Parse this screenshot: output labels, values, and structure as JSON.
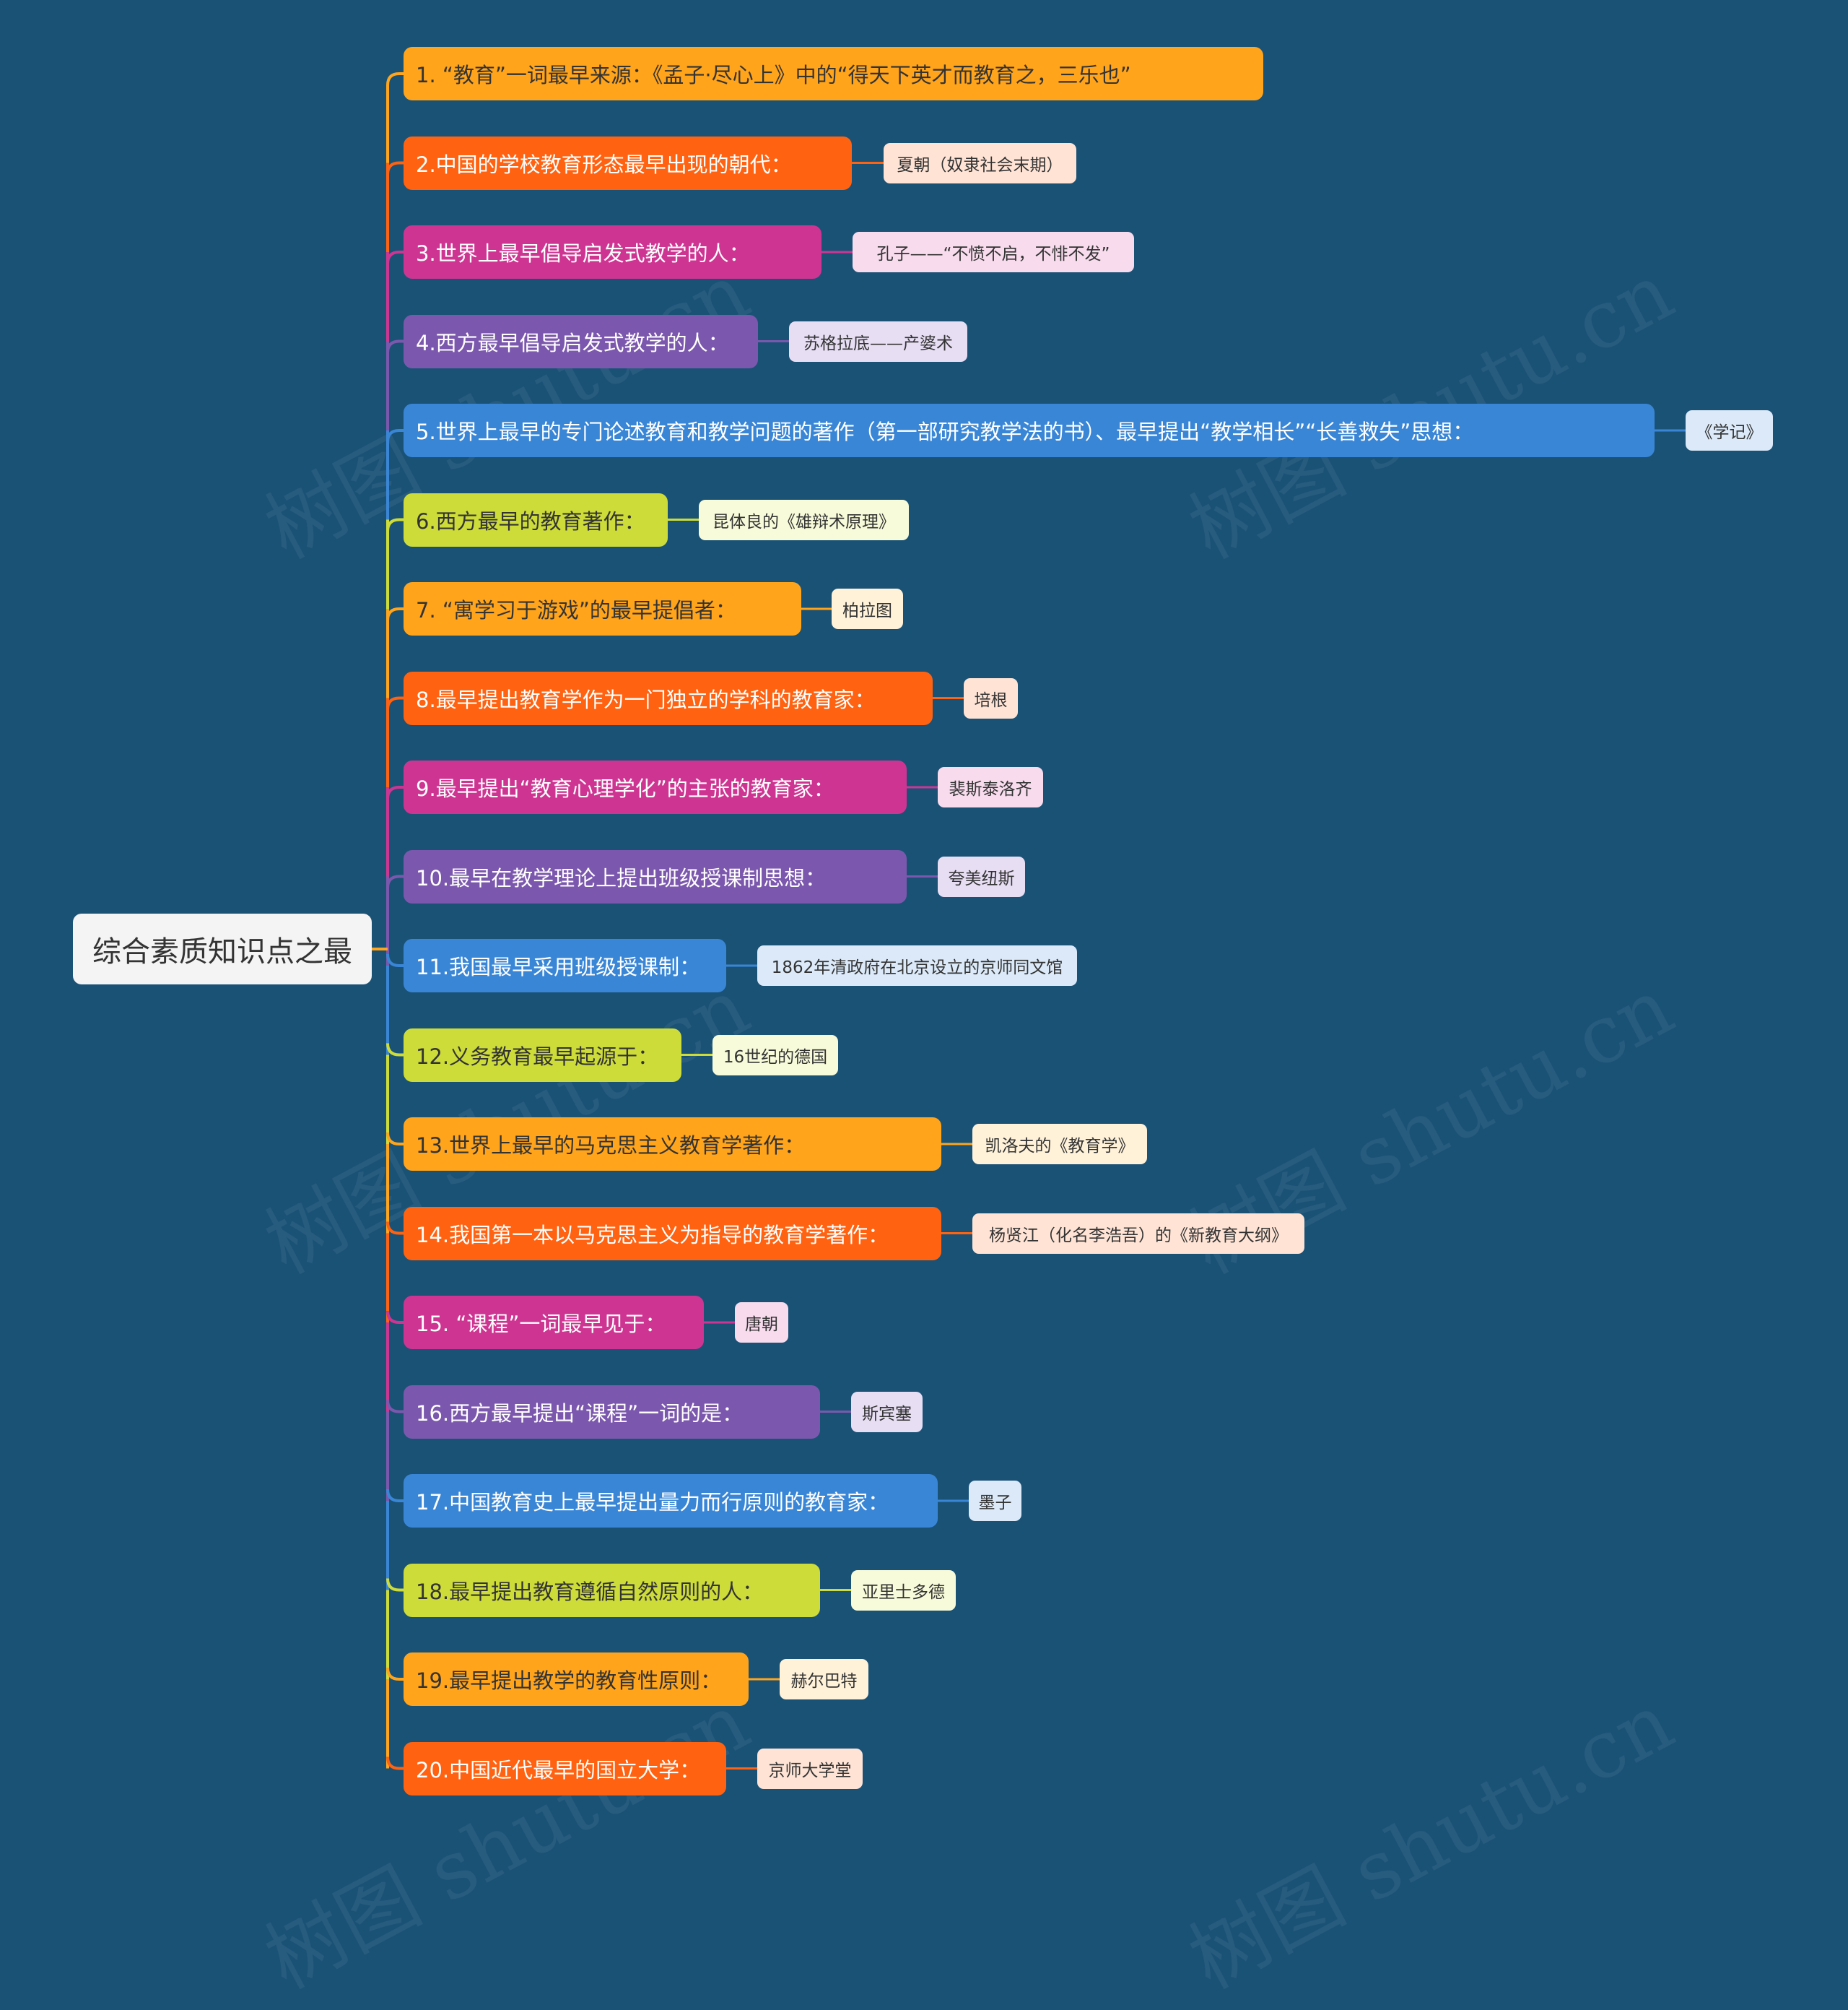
{
  "colors": {
    "background": "#1a5276",
    "root_bg": "#f4f4f4",
    "palette": [
      {
        "branch": "#ffa41b",
        "leaf": "#fff2d9",
        "text": "#333333"
      },
      {
        "branch": "#ff6210",
        "leaf": "#ffe4d6",
        "text": "#ffffff"
      },
      {
        "branch": "#ce3592",
        "leaf": "#f8dcee",
        "text": "#ffffff"
      },
      {
        "branch": "#7b58ad",
        "leaf": "#e7def4",
        "text": "#ffffff"
      },
      {
        "branch": "#3a86d6",
        "leaf": "#dbe9f8",
        "text": "#ffffff"
      },
      {
        "branch": "#cddc39",
        "leaf": "#f8fbd9",
        "text": "#333333"
      }
    ]
  },
  "watermark": "树图 shutu.cn",
  "root": {
    "label": "综合素质知识点之最"
  },
  "branches": [
    {
      "label": "1. “教育”一词最早来源：《孟子·尽心上》中的“得天下英才而教育之，三乐也”",
      "leaf": ""
    },
    {
      "label": "2.中国的学校教育形态最早出现的朝代：",
      "leaf": "夏朝（奴隶社会末期）"
    },
    {
      "label": "3.世界上最早倡导启发式教学的人：",
      "leaf": "孔子——“不愤不启，不悱不发”"
    },
    {
      "label": "4.西方最早倡导启发式教学的人：",
      "leaf": "苏格拉底——产婆术"
    },
    {
      "label": "5.世界上最早的专门论述教育和教学问题的著作（第一部研究教学法的书）、最早提出“教学相长”“长善救失”思想：",
      "leaf": "《学记》"
    },
    {
      "label": "6.西方最早的教育著作：",
      "leaf": "昆体良的《雄辩术原理》"
    },
    {
      "label": "7. “寓学习于游戏”的最早提倡者：",
      "leaf": "柏拉图"
    },
    {
      "label": "8.最早提出教育学作为一门独立的学科的教育家：",
      "leaf": "培根"
    },
    {
      "label": "9.最早提出“教育心理学化”的主张的教育家：",
      "leaf": "裴斯泰洛齐"
    },
    {
      "label": "10.最早在教学理论上提出班级授课制思想：",
      "leaf": "夸美纽斯"
    },
    {
      "label": "11.我国最早采用班级授课制：",
      "leaf": "1862年清政府在北京设立的京师同文馆"
    },
    {
      "label": "12.义务教育最早起源于：",
      "leaf": "16世纪的德国"
    },
    {
      "label": "13.世界上最早的马克思主义教育学著作：",
      "leaf": "凯洛夫的《教育学》"
    },
    {
      "label": "14.我国第一本以马克思主义为指导的教育学著作：",
      "leaf": "杨贤江（化名李浩吾）的《新教育大纲》"
    },
    {
      "label": "15. “课程”一词最早见于：",
      "leaf": "唐朝"
    },
    {
      "label": "16.西方最早提出“课程”一词的是：",
      "leaf": "斯宾塞"
    },
    {
      "label": "17.中国教育史上最早提出量力而行原则的教育家：",
      "leaf": "墨子"
    },
    {
      "label": "18.最早提出教育遵循自然原则的人：",
      "leaf": "亚里士多德"
    },
    {
      "label": "19.最早提出教学的教育性原则：",
      "leaf": "赫尔巴特"
    },
    {
      "label": "20.中国近代最早的国立大学：",
      "leaf": "京师大学堂"
    }
  ]
}
